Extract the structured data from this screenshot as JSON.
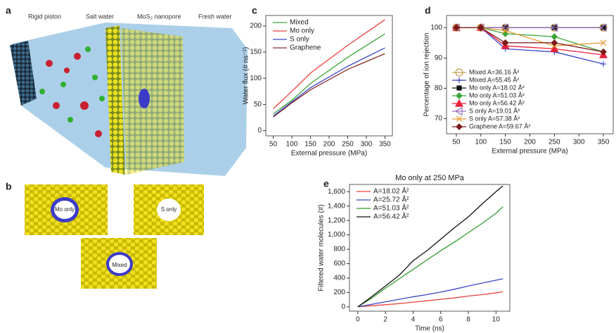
{
  "figure": {
    "panel_labels": [
      "a",
      "b",
      "c",
      "d",
      "e"
    ],
    "a_labels": [
      "Rigid piston",
      "Salt water",
      "MoS₂ nanopore",
      "Fresh water"
    ],
    "b_labels": [
      "Mo only",
      "S only",
      "Mixed"
    ]
  },
  "chart_data": [
    {
      "type": "line",
      "xlabel": "External pressure (MPa)",
      "ylabel": "Water flux (# ns⁻¹)",
      "x": [
        50,
        100,
        150,
        250,
        350
      ],
      "xlim": [
        30,
        370
      ],
      "xticks": [
        50,
        100,
        150,
        200,
        250,
        300,
        350
      ],
      "ylim": [
        -10,
        220
      ],
      "yticks": [
        0,
        50,
        100,
        150,
        200
      ],
      "legend": "upper left",
      "series": [
        {
          "name": "Mixed",
          "color": "#3aa63a",
          "values": [
            32,
            58,
            90,
            140,
            185
          ]
        },
        {
          "name": "Mo only",
          "color": "#e8413c",
          "values": [
            42,
            75,
            110,
            163,
            212
          ]
        },
        {
          "name": "S only",
          "color": "#3b46c8",
          "values": [
            28,
            55,
            82,
            123,
            158
          ]
        },
        {
          "name": "Graphene",
          "color": "#8b2a2a",
          "values": [
            26,
            53,
            78,
            117,
            147
          ]
        }
      ]
    },
    {
      "type": "line",
      "xlabel": "External pressure (MPa)",
      "ylabel": "Percentage of ion rejection",
      "x": [
        50,
        100,
        150,
        250,
        350
      ],
      "xlim": [
        30,
        370
      ],
      "xticks": [
        50,
        100,
        150,
        200,
        250,
        300,
        350
      ],
      "ylim": [
        65,
        104
      ],
      "yticks": [
        70,
        80,
        90,
        100
      ],
      "legend": "lower left",
      "series": [
        {
          "name": "Mixed A=36.16 Å²",
          "color": "#c8a050",
          "marker": "circle-open",
          "values": [
            100,
            100,
            100,
            100,
            100
          ]
        },
        {
          "name": "Mixed A=55.45 Å²",
          "color": "#3b46c8",
          "marker": "plus",
          "values": [
            100,
            100,
            93,
            92,
            88
          ]
        },
        {
          "name": "Mo only A=18.02 Å²",
          "color": "#111111",
          "marker": "square",
          "values": [
            100,
            100,
            100,
            100,
            100
          ]
        },
        {
          "name": "Mo only A=51.03 Å²",
          "color": "#3aa63a",
          "marker": "diamond",
          "values": [
            100,
            100,
            98,
            97,
            92
          ]
        },
        {
          "name": "Mo only A=56.42 Å²",
          "color": "#e8213c",
          "marker": "triangle",
          "values": [
            100,
            100,
            94,
            93,
            91
          ]
        },
        {
          "name": "S only A=19.01 Å²",
          "color": "#9a6fc0",
          "marker": "triangle-left-open",
          "values": [
            100,
            100,
            100,
            100,
            100
          ]
        },
        {
          "name": "S only A=57.38 Å²",
          "color": "#e89a30",
          "marker": "x",
          "values": [
            100,
            100,
            99,
            94,
            95
          ]
        },
        {
          "name": "Graphene A=59.67 Å²",
          "color": "#7a1a1a",
          "marker": "diamond",
          "values": [
            100,
            100,
            95,
            95,
            92
          ]
        }
      ]
    },
    {
      "type": "line",
      "title": "Mo only at 250 MPa",
      "xlabel": "Time (ns)",
      "ylabel": "Filtered water molecules (#)",
      "x": [
        0,
        1,
        2,
        3,
        4,
        5,
        6,
        7,
        8,
        9,
        10,
        10.5
      ],
      "xlim": [
        -0.6,
        11
      ],
      "xticks": [
        0,
        2,
        4,
        6,
        8,
        10
      ],
      "ylim": [
        -60,
        1700
      ],
      "yticks": [
        0,
        200,
        400,
        600,
        800,
        {
          "value": 1000,
          "label": "1,000"
        },
        {
          "value": 1200,
          "label": "1,200"
        },
        {
          "value": 1400,
          "label": "1,400"
        },
        {
          "value": 1600,
          "label": "1,600"
        }
      ],
      "legend": "upper left",
      "series": [
        {
          "name": "A=18.02 Å²",
          "color": "#e8413c",
          "values": [
            0,
            15,
            30,
            45,
            65,
            85,
            105,
            125,
            150,
            170,
            195,
            210
          ]
        },
        {
          "name": "A=25.72 Å²",
          "color": "#3b46c8",
          "values": [
            0,
            35,
            70,
            105,
            140,
            170,
            205,
            245,
            290,
            330,
            370,
            390
          ]
        },
        {
          "name": "A=51.03 Å²",
          "color": "#2e9a2e",
          "values": [
            0,
            120,
            260,
            390,
            520,
            650,
            780,
            900,
            1030,
            1160,
            1300,
            1390
          ]
        },
        {
          "name": "A=56.42 Å²",
          "color": "#111111",
          "values": [
            0,
            140,
            290,
            440,
            640,
            780,
            940,
            1100,
            1250,
            1430,
            1600,
            1680
          ]
        }
      ]
    }
  ]
}
